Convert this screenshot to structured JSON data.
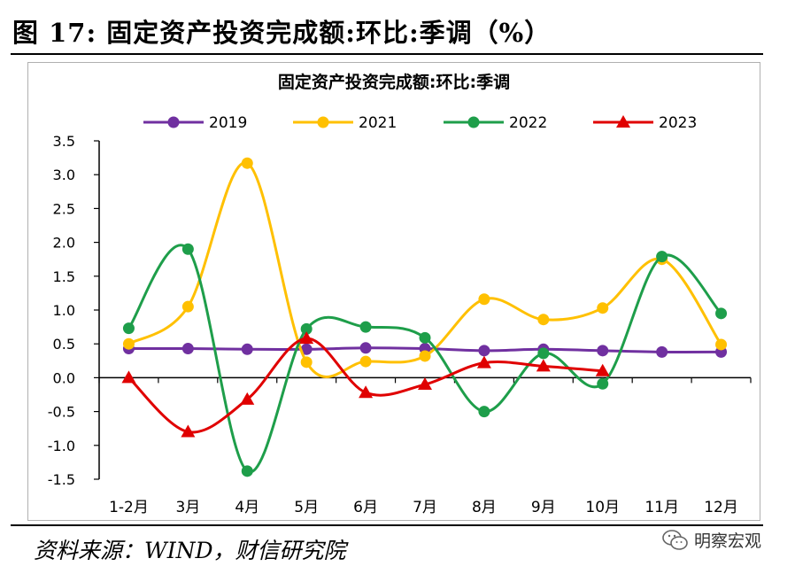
{
  "figure": {
    "title": "图 17:  固定资产投资完成额:环比:季调（%）",
    "source": "资料来源：WIND，财信研究院",
    "watermark": "明察宏观"
  },
  "chart_data": {
    "type": "line",
    "title": "固定资产投资完成额:环比:季调",
    "xlabel": "",
    "ylabel": "",
    "categories": [
      "1-2月",
      "3月",
      "4月",
      "5月",
      "6月",
      "7月",
      "8月",
      "9月",
      "10月",
      "11月",
      "12月"
    ],
    "ylim": [
      -1.5,
      3.5
    ],
    "yticks": [
      -1.5,
      -1.0,
      -0.5,
      0.0,
      0.5,
      1.0,
      1.5,
      2.0,
      2.5,
      3.0,
      3.5
    ],
    "ytick_labels": [
      "-1.5",
      "-1.0",
      "-0.5",
      "0.0",
      "0.5",
      "1.0",
      "1.5",
      "2.0",
      "2.5",
      "3.0",
      "3.5"
    ],
    "grid": false,
    "legend_position": "top",
    "series": [
      {
        "name": "2019",
        "color": "#7030A0",
        "marker": "circle",
        "values": [
          0.43,
          0.43,
          0.42,
          0.42,
          0.44,
          0.43,
          0.4,
          0.42,
          0.4,
          0.38,
          0.38
        ]
      },
      {
        "name": "2021",
        "color": "#FFC000",
        "marker": "circle",
        "values": [
          0.5,
          1.05,
          3.17,
          0.23,
          0.24,
          0.32,
          1.16,
          0.86,
          1.03,
          1.75,
          0.49
        ]
      },
      {
        "name": "2022",
        "color": "#1E9E4A",
        "marker": "circle",
        "values": [
          0.73,
          1.9,
          -1.38,
          0.72,
          0.75,
          0.59,
          -0.5,
          0.36,
          -0.09,
          1.79,
          0.95
        ]
      },
      {
        "name": "2023",
        "color": "#E00000",
        "marker": "triangle",
        "values": [
          0.0,
          -0.8,
          -0.32,
          0.58,
          -0.22,
          -0.1,
          0.22,
          0.17,
          0.1,
          null,
          null
        ]
      }
    ]
  }
}
